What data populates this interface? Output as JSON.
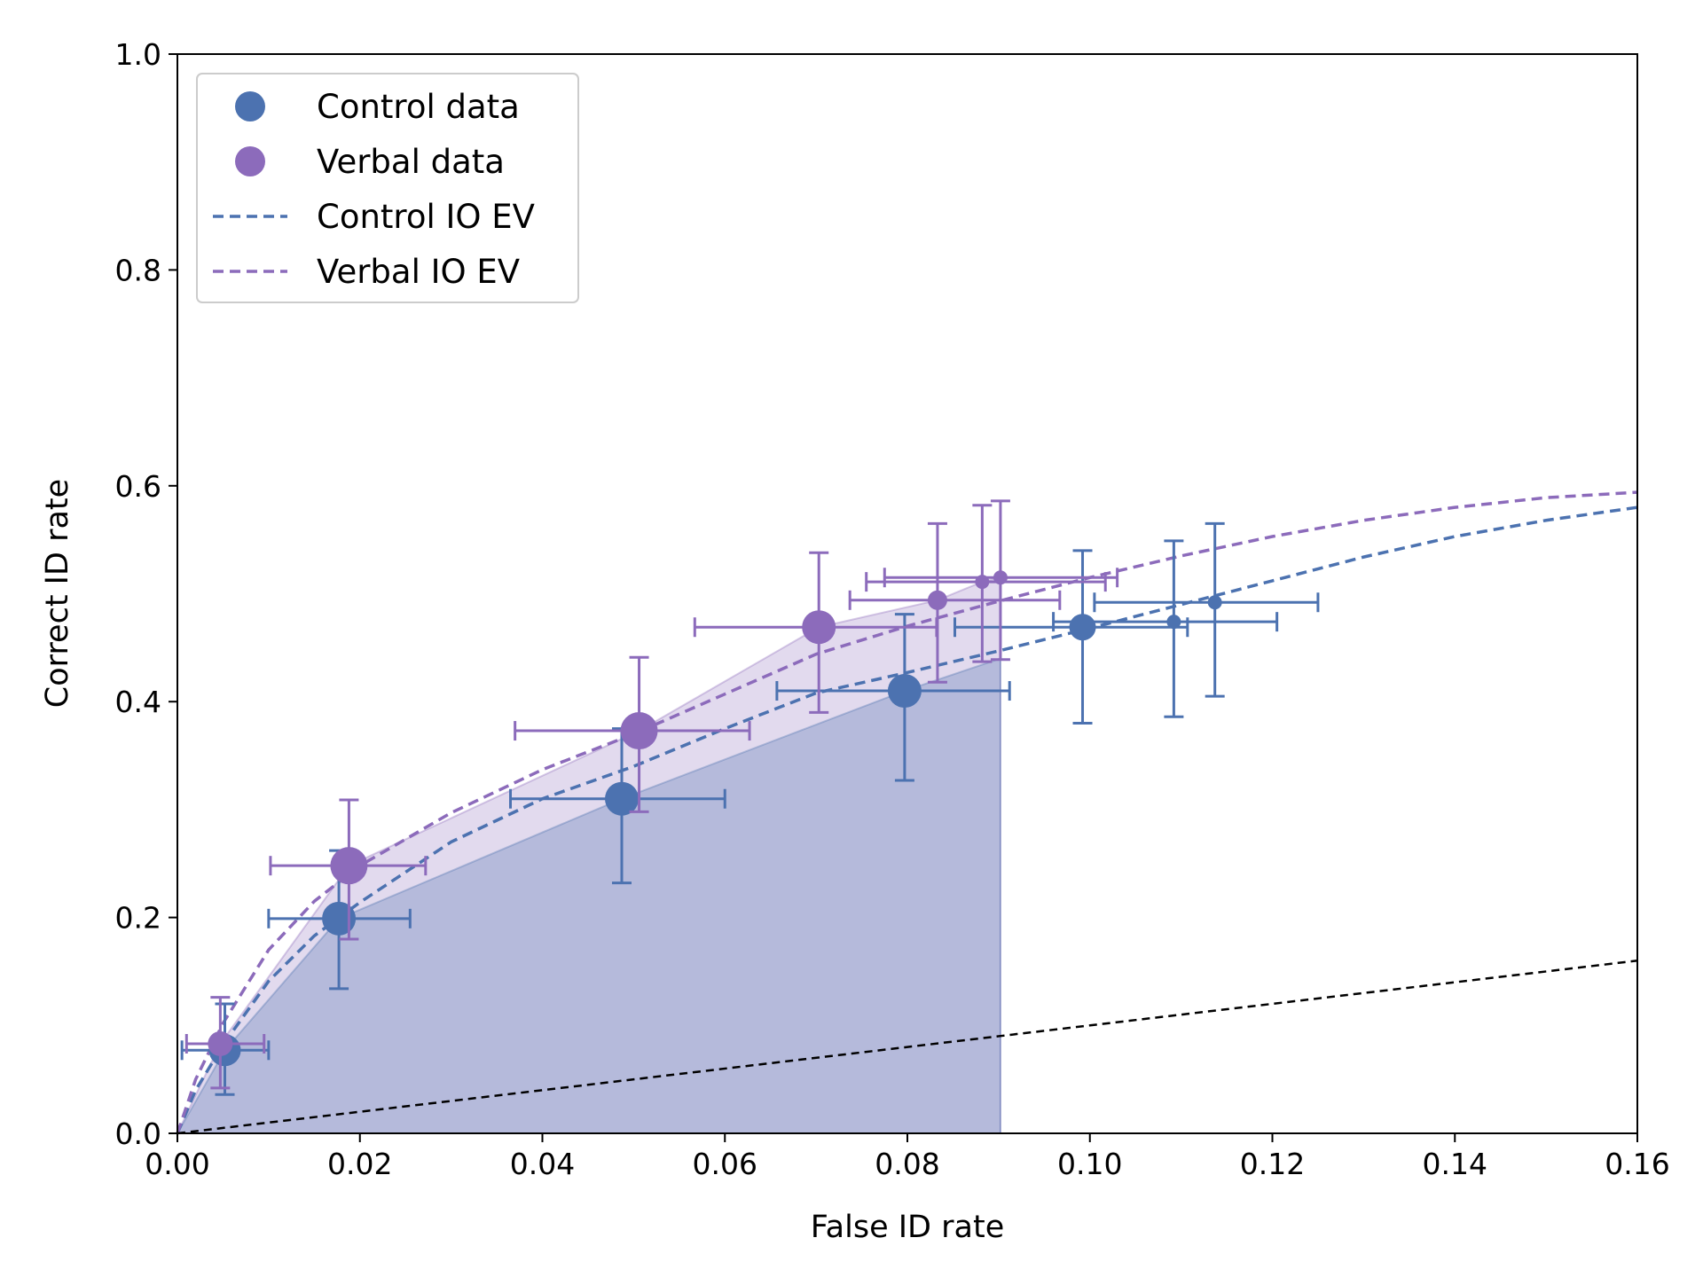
{
  "chart_data": {
    "type": "scatter",
    "xlabel": "False ID rate",
    "ylabel": "Correct ID rate",
    "xlim": [
      0,
      0.16
    ],
    "ylim": [
      0,
      1.0
    ],
    "x_ticks": [
      "0.00",
      "0.02",
      "0.04",
      "0.06",
      "0.08",
      "0.10",
      "0.12",
      "0.14",
      "0.16"
    ],
    "y_ticks": [
      "0.0",
      "0.2",
      "0.4",
      "0.6",
      "0.8",
      "1.0"
    ],
    "grid": false,
    "legend_position": "top-left",
    "colors": {
      "control": "#4c72b0",
      "verbal": "#8c6bbb",
      "chance": "#000000"
    },
    "legend": [
      {
        "label": "Control data",
        "kind": "marker",
        "color": "#4c72b0"
      },
      {
        "label": "Verbal data",
        "kind": "marker",
        "color": "#8c6bbb"
      },
      {
        "label": "Control IO EV",
        "kind": "dashed-line",
        "color": "#4c72b0"
      },
      {
        "label": "Verbal IO EV",
        "kind": "dashed-line",
        "color": "#8c6bbb"
      }
    ],
    "series": [
      {
        "name": "Control data",
        "color": "#4c72b0",
        "points": [
          {
            "x": 0.0052,
            "y": 0.077,
            "xerr": [
              0.0005,
              0.01
            ],
            "yerr": [
              0.036,
              0.12
            ],
            "size": 18
          },
          {
            "x": 0.0177,
            "y": 0.199,
            "xerr": [
              0.01,
              0.0255
            ],
            "yerr": [
              0.134,
              0.262
            ],
            "size": 19
          },
          {
            "x": 0.0487,
            "y": 0.31,
            "xerr": [
              0.0365,
              0.06
            ],
            "yerr": [
              0.232,
              0.375
            ],
            "size": 19
          },
          {
            "x": 0.0797,
            "y": 0.41,
            "xerr": [
              0.0657,
              0.0912
            ],
            "yerr": [
              0.327,
              0.481
            ],
            "size": 19
          },
          {
            "x": 0.0992,
            "y": 0.469,
            "xerr": [
              0.0852,
              0.1107
            ],
            "yerr": [
              0.38,
              0.54
            ],
            "size": 15
          },
          {
            "x": 0.1092,
            "y": 0.474,
            "xerr": [
              0.096,
              0.1205
            ],
            "yerr": [
              0.386,
              0.549
            ],
            "size": 8
          },
          {
            "x": 0.1137,
            "y": 0.492,
            "xerr": [
              0.1005,
              0.125
            ],
            "yerr": [
              0.405,
              0.565
            ],
            "size": 8
          }
        ]
      },
      {
        "name": "Verbal data",
        "color": "#8c6bbb",
        "points": [
          {
            "x": 0.0047,
            "y": 0.083,
            "xerr": [
              0.001,
              0.0095
            ],
            "yerr": [
              0.042,
              0.126
            ],
            "size": 14
          },
          {
            "x": 0.0188,
            "y": 0.248,
            "xerr": [
              0.0102,
              0.0272
            ],
            "yerr": [
              0.18,
              0.309
            ],
            "size": 21
          },
          {
            "x": 0.0506,
            "y": 0.373,
            "xerr": [
              0.037,
              0.0627
            ],
            "yerr": [
              0.298,
              0.441
            ],
            "size": 21
          },
          {
            "x": 0.0703,
            "y": 0.469,
            "xerr": [
              0.0567,
              0.0832
            ],
            "yerr": [
              0.39,
              0.538
            ],
            "size": 19
          },
          {
            "x": 0.0833,
            "y": 0.494,
            "xerr": [
              0.0737,
              0.0967
            ],
            "yerr": [
              0.418,
              0.565
            ],
            "size": 11
          },
          {
            "x": 0.0882,
            "y": 0.511,
            "xerr": [
              0.0755,
              0.1017
            ],
            "yerr": [
              0.437,
              0.582
            ],
            "size": 8
          },
          {
            "x": 0.0902,
            "y": 0.515,
            "xerr": [
              0.0775,
              0.103
            ],
            "yerr": [
              0.439,
              0.586
            ],
            "size": 8
          }
        ]
      }
    ],
    "curves": [
      {
        "name": "Control IO EV",
        "color": "#4c72b0",
        "style": "dashed",
        "x": [
          0,
          0.002,
          0.005,
          0.01,
          0.015,
          0.02,
          0.03,
          0.04,
          0.05,
          0.06,
          0.07,
          0.08,
          0.09,
          0.1,
          0.11,
          0.12,
          0.13,
          0.14,
          0.15,
          0.16
        ],
        "y": [
          0,
          0.04,
          0.082,
          0.141,
          0.183,
          0.214,
          0.27,
          0.31,
          0.34,
          0.375,
          0.408,
          0.427,
          0.447,
          0.468,
          0.49,
          0.512,
          0.534,
          0.553,
          0.568,
          0.58
        ]
      },
      {
        "name": "Verbal IO EV",
        "color": "#8c6bbb",
        "style": "dashed",
        "x": [
          0,
          0.002,
          0.005,
          0.01,
          0.015,
          0.02,
          0.03,
          0.04,
          0.05,
          0.06,
          0.07,
          0.08,
          0.09,
          0.1,
          0.11,
          0.12,
          0.13,
          0.14,
          0.15,
          0.16
        ],
        "y": [
          0,
          0.05,
          0.102,
          0.17,
          0.215,
          0.248,
          0.297,
          0.337,
          0.37,
          0.407,
          0.444,
          0.47,
          0.493,
          0.515,
          0.535,
          0.553,
          0.568,
          0.58,
          0.589,
          0.594
        ]
      },
      {
        "name": "chance",
        "color": "#000000",
        "style": "dashed",
        "x": [
          0,
          0.16
        ],
        "y": [
          0,
          0.16
        ]
      }
    ],
    "shaded_areas": [
      {
        "color": "#8c6bbb",
        "opacity": 0.25,
        "x": [
          0,
          0.0047,
          0.0188,
          0.0506,
          0.0703,
          0.0833,
          0.0882,
          0.0902
        ],
        "y": [
          0,
          0.083,
          0.248,
          0.373,
          0.469,
          0.494,
          0.511,
          0.515
        ]
      },
      {
        "color": "#4c72b0",
        "opacity": 0.3,
        "x": [
          0,
          0.0052,
          0.0177,
          0.0487,
          0.0797,
          0.0902
        ],
        "y": [
          0,
          0.077,
          0.199,
          0.31,
          0.41,
          0.44
        ]
      }
    ]
  }
}
